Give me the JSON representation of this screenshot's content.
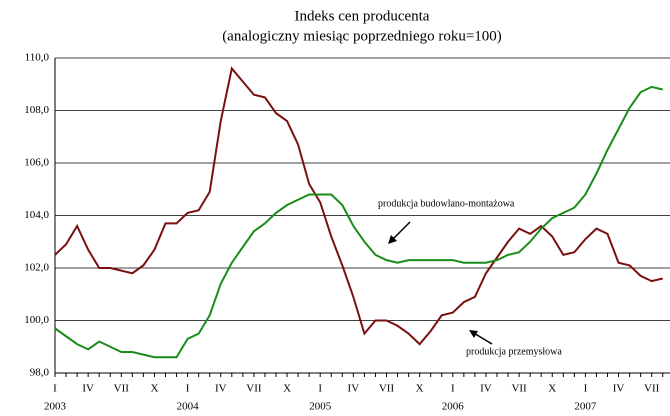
{
  "chart_data": {
    "type": "line",
    "title": "Indeks cen producenta",
    "subtitle": "(analogiczny miesiąc poprzedniego roku=100)",
    "categories": [
      "I",
      null,
      null,
      "IV",
      null,
      null,
      "VII",
      null,
      null,
      "X",
      null,
      null,
      "I",
      null,
      null,
      "IV",
      null,
      null,
      "VII",
      null,
      null,
      "X",
      null,
      null,
      "I",
      null,
      null,
      "IV",
      null,
      null,
      "VII",
      null,
      null,
      "X",
      null,
      null,
      "I",
      null,
      null,
      "IV",
      null,
      null,
      "VII",
      null,
      null,
      "X",
      null,
      null,
      "I",
      null,
      null,
      "IV",
      null,
      null,
      "VII",
      null
    ],
    "years": [
      "2003",
      null,
      null,
      null,
      null,
      null,
      null,
      null,
      null,
      null,
      null,
      null,
      "2004",
      null,
      null,
      null,
      null,
      null,
      null,
      null,
      null,
      null,
      null,
      null,
      "2005",
      null,
      null,
      null,
      null,
      null,
      null,
      null,
      null,
      null,
      null,
      null,
      "2006",
      null,
      null,
      null,
      null,
      null,
      null,
      null,
      null,
      null,
      null,
      null,
      "2007",
      null,
      null,
      null,
      null,
      null,
      null,
      null
    ],
    "series": [
      {
        "name": "produkcja przemysłowa",
        "color": "#7b1010",
        "values": [
          102.5,
          102.9,
          103.6,
          102.7,
          102.0,
          102.0,
          101.9,
          101.8,
          102.1,
          102.7,
          103.7,
          103.7,
          104.1,
          104.2,
          104.9,
          107.6,
          109.6,
          109.1,
          108.6,
          108.5,
          107.9,
          107.6,
          106.7,
          105.2,
          104.5,
          103.2,
          102.1,
          100.9,
          99.5,
          100.0,
          100.0,
          99.8,
          99.5,
          99.1,
          99.6,
          100.2,
          100.3,
          100.7,
          100.9,
          101.8,
          102.4,
          103.0,
          103.5,
          103.3,
          103.6,
          103.2,
          102.5,
          102.6,
          103.1,
          103.5,
          103.3,
          102.2,
          102.1,
          101.7,
          101.5,
          101.6
        ]
      },
      {
        "name": "produkcja budowlano-montażowa",
        "color": "#1a8c1a",
        "values": [
          99.7,
          99.4,
          99.1,
          98.9,
          99.2,
          99.0,
          98.8,
          98.8,
          98.7,
          98.6,
          98.6,
          98.6,
          99.3,
          99.5,
          100.2,
          101.4,
          102.2,
          102.8,
          103.4,
          103.7,
          104.1,
          104.4,
          104.6,
          104.8,
          104.8,
          104.8,
          104.4,
          103.6,
          103.0,
          102.5,
          102.3,
          102.2,
          102.3,
          102.3,
          102.3,
          102.3,
          102.3,
          102.2,
          102.2,
          102.2,
          102.3,
          102.5,
          102.6,
          103.0,
          103.5,
          103.9,
          104.1,
          104.3,
          104.8,
          105.6,
          106.5,
          107.3,
          108.1,
          108.7,
          108.9,
          108.8
        ]
      }
    ],
    "ylim": [
      98,
      110
    ],
    "yticks": [
      {
        "value": 98,
        "label": "98,0"
      },
      {
        "value": 100,
        "label": "100,0"
      },
      {
        "value": 102,
        "label": "102,0"
      },
      {
        "value": 104,
        "label": "104,0"
      },
      {
        "value": 106,
        "label": "106,0"
      },
      {
        "value": 108,
        "label": "108,0"
      },
      {
        "value": 110,
        "label": "110,0"
      }
    ],
    "grid": true
  }
}
